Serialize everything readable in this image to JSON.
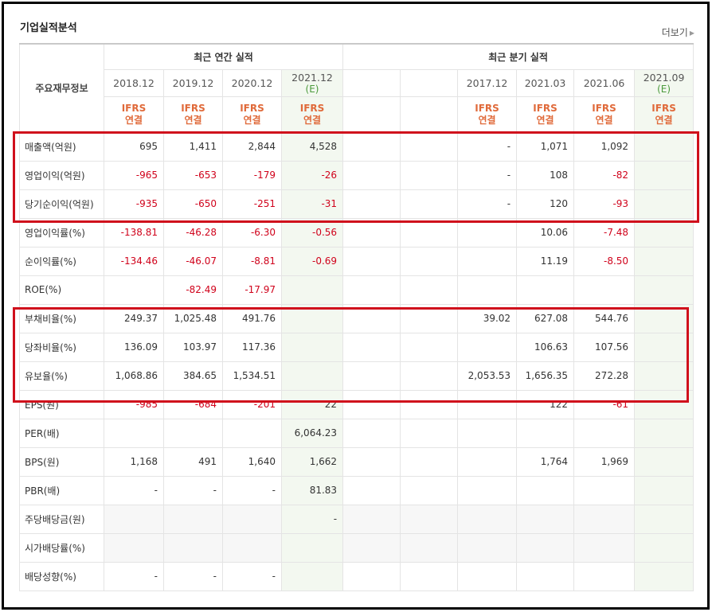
{
  "title": "기업실적분석",
  "more_label": "더보기",
  "header": {
    "row_label": "주요재무정보",
    "annual_group": "최근 연간 실적",
    "quarter_group": "최근 분기 실적",
    "annual_years": [
      {
        "label": "2018.12",
        "est": ""
      },
      {
        "label": "2019.12",
        "est": ""
      },
      {
        "label": "2020.12",
        "est": ""
      },
      {
        "label": "2021.12",
        "est": "(E)"
      }
    ],
    "quarter_years": [
      {
        "label": "",
        "est": ""
      },
      {
        "label": "",
        "est": ""
      },
      {
        "label": "2017.12",
        "est": ""
      },
      {
        "label": "2021.03",
        "est": ""
      },
      {
        "label": "2021.06",
        "est": ""
      },
      {
        "label": "2021.09",
        "est": "(E)"
      }
    ],
    "ifrs_top": "IFRS",
    "ifrs_bottom": "연결"
  },
  "rows": [
    {
      "label": "매출액(억원)",
      "annual": [
        "695",
        "1,411",
        "2,844",
        "4,528"
      ],
      "quarter": [
        "",
        "",
        "-",
        "1,071",
        "1,092",
        ""
      ]
    },
    {
      "label": "영업이익(억원)",
      "annual": [
        "-965",
        "-653",
        "-179",
        "-26"
      ],
      "quarter": [
        "",
        "",
        "-",
        "108",
        "-82",
        ""
      ]
    },
    {
      "label": "당기순이익(억원)",
      "annual": [
        "-935",
        "-650",
        "-251",
        "-31"
      ],
      "quarter": [
        "",
        "",
        "-",
        "120",
        "-93",
        ""
      ]
    },
    {
      "label": "영업이익률(%)",
      "annual": [
        "-138.81",
        "-46.28",
        "-6.30",
        "-0.56"
      ],
      "quarter": [
        "",
        "",
        "",
        "10.06",
        "-7.48",
        ""
      ]
    },
    {
      "label": "순이익률(%)",
      "annual": [
        "-134.46",
        "-46.07",
        "-8.81",
        "-0.69"
      ],
      "quarter": [
        "",
        "",
        "",
        "11.19",
        "-8.50",
        ""
      ]
    },
    {
      "label": "ROE(%)",
      "annual": [
        "",
        "-82.49",
        "-17.97",
        ""
      ],
      "quarter": [
        "",
        "",
        "",
        "",
        "",
        ""
      ]
    },
    {
      "label": "부채비율(%)",
      "annual": [
        "249.37",
        "1,025.48",
        "491.76",
        ""
      ],
      "quarter": [
        "",
        "",
        "39.02",
        "627.08",
        "544.76",
        ""
      ]
    },
    {
      "label": "당좌비율(%)",
      "annual": [
        "136.09",
        "103.97",
        "117.36",
        ""
      ],
      "quarter": [
        "",
        "",
        "",
        "106.63",
        "107.56",
        ""
      ]
    },
    {
      "label": "유보율(%)",
      "annual": [
        "1,068.86",
        "384.65",
        "1,534.51",
        ""
      ],
      "quarter": [
        "",
        "",
        "2,053.53",
        "1,656.35",
        "272.28",
        ""
      ]
    },
    {
      "label": "EPS(원)",
      "annual": [
        "-985",
        "-684",
        "-201",
        "22"
      ],
      "quarter": [
        "",
        "",
        "",
        "122",
        "-61",
        ""
      ]
    },
    {
      "label": "PER(배)",
      "annual": [
        "",
        "",
        "",
        "6,064.23"
      ],
      "quarter": [
        "",
        "",
        "",
        "",
        "",
        ""
      ]
    },
    {
      "label": "BPS(원)",
      "annual": [
        "1,168",
        "491",
        "1,640",
        "1,662"
      ],
      "quarter": [
        "",
        "",
        "",
        "1,764",
        "1,969",
        ""
      ]
    },
    {
      "label": "PBR(배)",
      "annual": [
        "-",
        "-",
        "-",
        "81.83"
      ],
      "quarter": [
        "",
        "",
        "",
        "",
        "",
        ""
      ]
    },
    {
      "label": "주당배당금(원)",
      "annual": [
        "",
        "",
        "",
        "-"
      ],
      "quarter": [
        "",
        "",
        "",
        "",
        "",
        ""
      ],
      "gray": true
    },
    {
      "label": "시가배당률(%)",
      "annual": [
        "",
        "",
        "",
        ""
      ],
      "quarter": [
        "",
        "",
        "",
        "",
        "",
        ""
      ],
      "gray": true
    },
    {
      "label": "배당성향(%)",
      "annual": [
        "-",
        "-",
        "-",
        ""
      ],
      "quarter": [
        "",
        "",
        "",
        "",
        "",
        ""
      ]
    }
  ],
  "colors": {
    "negative": "#d0021b",
    "ifrs": "#e06a3a",
    "estimate_text": "#4b9a3c",
    "estimate_bg": "#f3f8f0",
    "highlight": "#d0101c"
  }
}
